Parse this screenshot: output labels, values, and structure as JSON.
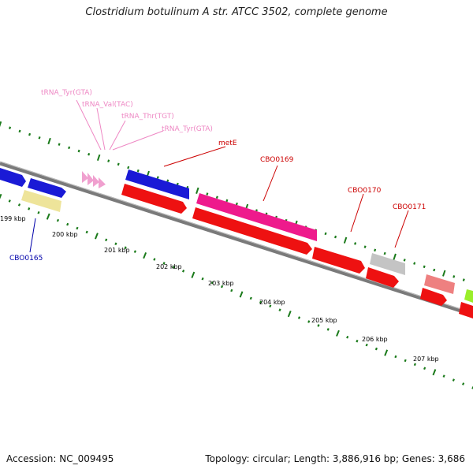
{
  "header": {
    "title": "Clostridium botulinum A str. ATCC 3502, complete genome"
  },
  "footer": {
    "accession": "Accession: NC_009495",
    "summary": "Topology: circular; Length: 3,886,916 bp; Genes: 3,686"
  },
  "colors": {
    "backbone": "#7a7a7a",
    "tick": "#1a7a1a",
    "cds_forward_blue": "#1a1ad6",
    "cds_red": "#ee1111",
    "cds_magenta": "#ee1a8c",
    "cds_yellow": "#eee49a",
    "cds_gray": "#c4c4c4",
    "cds_salmon": "#ee8080",
    "cds_lime": "#9aee2a",
    "trna_pink": "#f0a0cf",
    "label_red": "#cc0000",
    "label_blue": "#0000aa",
    "label_pink": "#ee88c4"
  },
  "scale_labels": [
    "199 kbp",
    "200 kbp",
    "201 kbp",
    "202 kbp",
    "203 kbp",
    "204 kbp",
    "205 kbp",
    "206 kbp",
    "207 kbp"
  ],
  "feature_labels": {
    "trna_1": "tRNA_Tyr(GTA)",
    "trna_2": "tRNA_Val(TAC)",
    "trna_3": "tRNA_Thr(TGT)",
    "trna_4": "tRNA_Tyr(GTA)",
    "metE": "metE",
    "cbo0169": "CBO0169",
    "cbo0170": "CBO0170",
    "cbo0171": "CBO0171",
    "cbo0165": "CBO0165"
  }
}
